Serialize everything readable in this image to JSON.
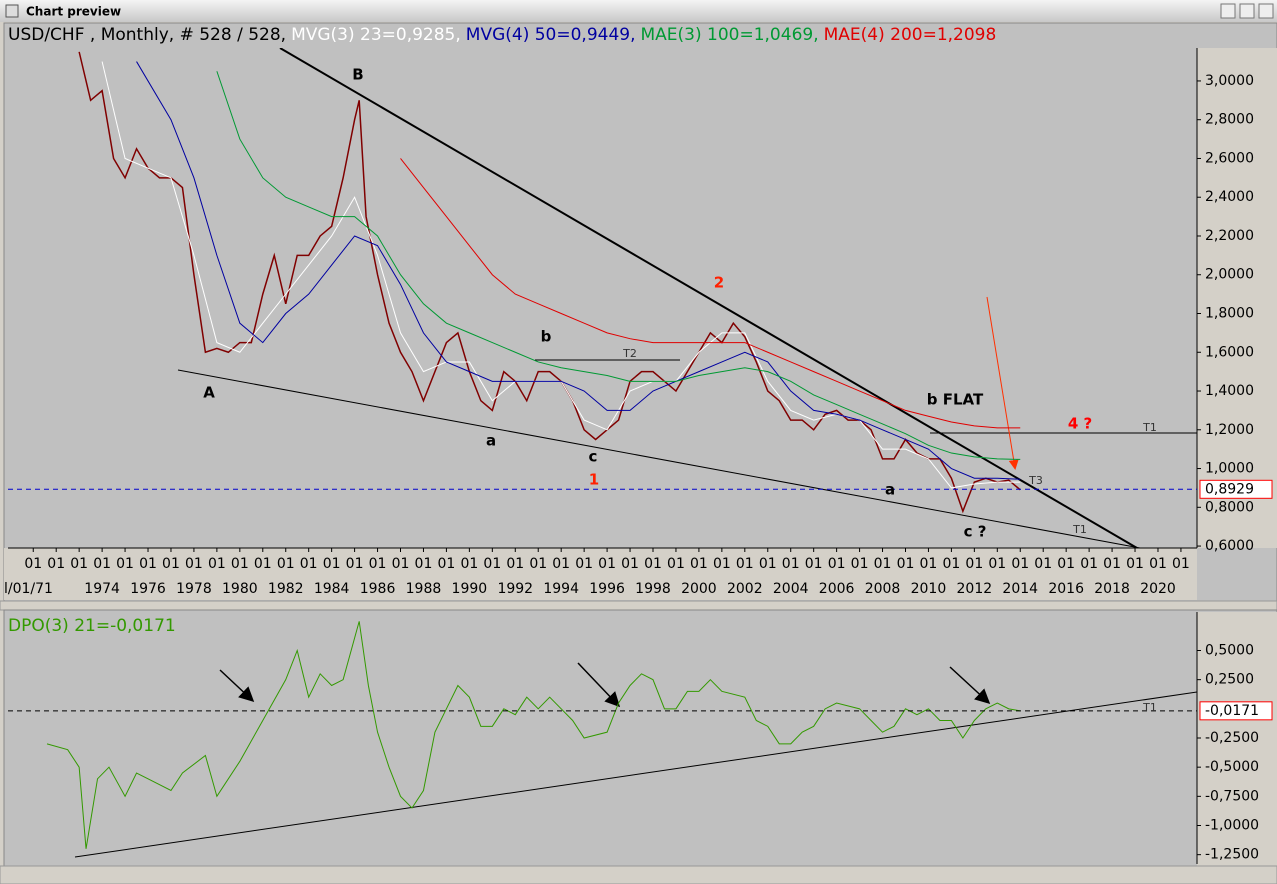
{
  "window_title": "Chart preview",
  "chart_data": [
    {
      "type": "line",
      "title": "USD/CHF , Monthly, # 528 / 528,",
      "xlim": [
        1969.9,
        2021.7
      ],
      "ylim": [
        0.59,
        3.17
      ],
      "xticks": [
        {
          "value": 1971,
          "label": "l/01/71"
        },
        1974,
        1976,
        1978,
        1980,
        1982,
        1984,
        1986,
        1988,
        1990,
        1992,
        1994,
        1996,
        1998,
        2000,
        2002,
        2004,
        2006,
        2008,
        2010,
        2012,
        2014,
        2016,
        2018,
        2020
      ],
      "xminorticks": [
        {
          "value": 1971,
          "label": "01"
        },
        {
          "value": 1972,
          "label": "01"
        },
        {
          "value": 1973,
          "label": "01"
        },
        {
          "value": 1974,
          "label": "01"
        },
        {
          "value": 1975,
          "label": "01"
        },
        {
          "value": 1976,
          "label": "01"
        },
        {
          "value": 1977,
          "label": "01"
        },
        {
          "value": 1978,
          "label": "01"
        },
        {
          "value": 1979,
          "label": "01"
        },
        {
          "value": 1980,
          "label": "01"
        },
        {
          "value": 1981,
          "label": "01"
        },
        {
          "value": 1982,
          "label": "01"
        },
        {
          "value": 1983,
          "label": "01"
        },
        {
          "value": 1984,
          "label": "01"
        },
        {
          "value": 1985,
          "label": "01"
        },
        {
          "value": 1986,
          "label": "01"
        },
        {
          "value": 1987,
          "label": "01"
        },
        {
          "value": 1988,
          "label": "01"
        },
        {
          "value": 1989,
          "label": "01"
        },
        {
          "value": 1990,
          "label": "01"
        },
        {
          "value": 1991,
          "label": "01"
        },
        {
          "value": 1992,
          "label": "01"
        },
        {
          "value": 1993,
          "label": "01"
        },
        {
          "value": 1994,
          "label": "01"
        },
        {
          "value": 1995,
          "label": "01"
        },
        {
          "value": 1996,
          "label": "01"
        },
        {
          "value": 1997,
          "label": "01"
        },
        {
          "value": 1998,
          "label": "01"
        },
        {
          "value": 1999,
          "label": "01"
        },
        {
          "value": 2000,
          "label": "01"
        },
        {
          "value": 2001,
          "label": "01"
        },
        {
          "value": 2002,
          "label": "01"
        },
        {
          "value": 2003,
          "label": "01"
        },
        {
          "value": 2004,
          "label": "01"
        },
        {
          "value": 2005,
          "label": "01"
        },
        {
          "value": 2006,
          "label": "01"
        },
        {
          "value": 2007,
          "label": "01"
        },
        {
          "value": 2008,
          "label": "01"
        },
        {
          "value": 2009,
          "label": "01"
        },
        {
          "value": 2010,
          "label": "01"
        },
        {
          "value": 2011,
          "label": "01"
        },
        {
          "value": 2012,
          "label": "01"
        },
        {
          "value": 2013,
          "label": "01"
        },
        {
          "value": 2014,
          "label": "01"
        },
        {
          "value": 2015,
          "label": "01"
        },
        {
          "value": 2016,
          "label": "01"
        },
        {
          "value": 2017,
          "label": "01"
        },
        {
          "value": 2018,
          "label": "01"
        },
        {
          "value": 2019,
          "label": "01"
        },
        {
          "value": 2020,
          "label": "01"
        },
        {
          "value": 2021,
          "label": "01"
        }
      ],
      "yticks": [
        {
          "value": 0.6,
          "label": "0,6000"
        },
        {
          "value": 0.8,
          "label": "0,8000"
        },
        {
          "value": 1.0,
          "label": "1,0000"
        },
        {
          "value": 1.2,
          "label": "1,2000"
        },
        {
          "value": 1.4,
          "label": "1,4000"
        },
        {
          "value": 1.6,
          "label": "1,6000"
        },
        {
          "value": 1.8,
          "label": "1,8000"
        },
        {
          "value": 2.0,
          "label": "2,0000"
        },
        {
          "value": 2.2,
          "label": "2,2000"
        },
        {
          "value": 2.4,
          "label": "2,4000"
        },
        {
          "value": 2.6,
          "label": "2,6000"
        },
        {
          "value": 2.8,
          "label": "2,8000"
        },
        {
          "value": 3.0,
          "label": "3,0000"
        }
      ],
      "price": {
        "color": "#800000",
        "x": [
          1973.0,
          1973.5,
          1974.0,
          1974.5,
          1975.0,
          1975.5,
          1976.0,
          1976.5,
          1977.0,
          1977.5,
          1978.0,
          1978.5,
          1979.0,
          1979.5,
          1980.0,
          1980.5,
          1981.0,
          1981.5,
          1982.0,
          1982.5,
          1983.0,
          1983.5,
          1984.0,
          1984.5,
          1985.0,
          1985.2,
          1985.5,
          1986.0,
          1986.5,
          1987.0,
          1987.5,
          1988.0,
          1988.5,
          1989.0,
          1989.5,
          1990.0,
          1990.5,
          1991.0,
          1991.5,
          1992.0,
          1992.5,
          1993.0,
          1993.5,
          1994.0,
          1994.5,
          1995.0,
          1995.5,
          1996.0,
          1996.5,
          1997.0,
          1997.5,
          1998.0,
          1998.5,
          1999.0,
          1999.5,
          2000.0,
          2000.5,
          2001.0,
          2001.5,
          2002.0,
          2002.5,
          2003.0,
          2003.5,
          2004.0,
          2004.5,
          2005.0,
          2005.5,
          2006.0,
          2006.5,
          2007.0,
          2007.5,
          2008.0,
          2008.5,
          2009.0,
          2009.5,
          2010.0,
          2010.5,
          2011.0,
          2011.5,
          2012.0,
          2012.5,
          2013.0,
          2013.5,
          2014.0
        ],
        "values": [
          3.15,
          2.9,
          2.95,
          2.6,
          2.5,
          2.65,
          2.55,
          2.5,
          2.5,
          2.45,
          2.0,
          1.6,
          1.62,
          1.6,
          1.65,
          1.65,
          1.9,
          2.1,
          1.85,
          2.1,
          2.1,
          2.2,
          2.25,
          2.5,
          2.8,
          2.9,
          2.3,
          2.0,
          1.75,
          1.6,
          1.5,
          1.35,
          1.5,
          1.65,
          1.7,
          1.5,
          1.35,
          1.3,
          1.5,
          1.45,
          1.35,
          1.5,
          1.5,
          1.45,
          1.35,
          1.2,
          1.15,
          1.2,
          1.25,
          1.45,
          1.5,
          1.5,
          1.45,
          1.4,
          1.5,
          1.6,
          1.7,
          1.65,
          1.75,
          1.68,
          1.55,
          1.4,
          1.35,
          1.25,
          1.25,
          1.2,
          1.28,
          1.3,
          1.25,
          1.25,
          1.2,
          1.05,
          1.05,
          1.15,
          1.08,
          1.05,
          1.05,
          0.95,
          0.78,
          0.93,
          0.95,
          0.93,
          0.94,
          0.89
        ]
      },
      "series": [
        {
          "name": "MVG(3) 23=0,9285,",
          "color": "#ffffff",
          "x": [
            1974,
            1975,
            1976,
            1977,
            1978,
            1979,
            1980,
            1981,
            1982,
            1983,
            1984,
            1985,
            1986,
            1987,
            1988,
            1989,
            1990,
            1991,
            1992,
            1993,
            1994,
            1995,
            1996,
            1997,
            1998,
            1999,
            2000,
            2001,
            2002,
            2003,
            2004,
            2005,
            2006,
            2007,
            2008,
            2009,
            2010,
            2011,
            2012,
            2013,
            2014
          ],
          "values": [
            3.1,
            2.6,
            2.55,
            2.5,
            2.1,
            1.65,
            1.6,
            1.75,
            1.9,
            2.05,
            2.2,
            2.4,
            2.1,
            1.7,
            1.5,
            1.55,
            1.55,
            1.35,
            1.45,
            1.45,
            1.45,
            1.25,
            1.2,
            1.4,
            1.45,
            1.45,
            1.6,
            1.7,
            1.7,
            1.45,
            1.3,
            1.25,
            1.28,
            1.25,
            1.1,
            1.1,
            1.05,
            0.9,
            0.92,
            0.93,
            0.93
          ]
        },
        {
          "name": "MVG(4) 50=0,9449,",
          "color": "#0000a0",
          "x": [
            1975.5,
            1977,
            1978,
            1979,
            1980,
            1981,
            1982,
            1983,
            1984,
            1985,
            1986,
            1987,
            1988,
            1989,
            1990,
            1991,
            1992,
            1993,
            1994,
            1995,
            1996,
            1997,
            1998,
            1999,
            2000,
            2001,
            2002,
            2003,
            2004,
            2005,
            2006,
            2007,
            2008,
            2009,
            2010,
            2011,
            2012,
            2013,
            2014
          ],
          "values": [
            3.1,
            2.8,
            2.5,
            2.1,
            1.75,
            1.65,
            1.8,
            1.9,
            2.05,
            2.2,
            2.15,
            1.95,
            1.7,
            1.55,
            1.5,
            1.45,
            1.45,
            1.45,
            1.45,
            1.4,
            1.3,
            1.3,
            1.4,
            1.45,
            1.5,
            1.55,
            1.6,
            1.55,
            1.4,
            1.3,
            1.28,
            1.25,
            1.2,
            1.15,
            1.1,
            1.0,
            0.95,
            0.95,
            0.945
          ]
        },
        {
          "name": "MAE(3) 100=1,0469,",
          "color": "#009933",
          "x": [
            1979,
            1980,
            1981,
            1982,
            1983,
            1984,
            1985,
            1986,
            1987,
            1988,
            1989,
            1990,
            1991,
            1992,
            1993,
            1994,
            1995,
            1996,
            1997,
            1998,
            1999,
            2000,
            2001,
            2002,
            2003,
            2004,
            2005,
            2006,
            2007,
            2008,
            2009,
            2010,
            2011,
            2012,
            2013,
            2014
          ],
          "values": [
            3.05,
            2.7,
            2.5,
            2.4,
            2.35,
            2.3,
            2.3,
            2.2,
            2.0,
            1.85,
            1.75,
            1.7,
            1.65,
            1.6,
            1.55,
            1.52,
            1.5,
            1.48,
            1.45,
            1.45,
            1.45,
            1.48,
            1.5,
            1.52,
            1.5,
            1.45,
            1.38,
            1.33,
            1.28,
            1.23,
            1.18,
            1.12,
            1.08,
            1.06,
            1.05,
            1.047
          ]
        },
        {
          "name": "MAE(4) 200=1,2098",
          "color": "#e00000",
          "x": [
            1987,
            1988,
            1989,
            1990,
            1991,
            1992,
            1993,
            1994,
            1995,
            1996,
            1997,
            1998,
            1999,
            2000,
            2001,
            2002,
            2003,
            2004,
            2005,
            2006,
            2007,
            2008,
            2009,
            2010,
            2011,
            2012,
            2013,
            2014
          ],
          "values": [
            2.6,
            2.45,
            2.3,
            2.15,
            2.0,
            1.9,
            1.85,
            1.8,
            1.75,
            1.7,
            1.67,
            1.65,
            1.65,
            1.65,
            1.65,
            1.65,
            1.6,
            1.55,
            1.5,
            1.45,
            1.4,
            1.35,
            1.3,
            1.27,
            1.24,
            1.22,
            1.21,
            1.21
          ]
        }
      ],
      "current": 0.8929,
      "current_label": "0,8929",
      "annotations": [
        {
          "text": "B",
          "color": "#000000"
        },
        {
          "text": "A",
          "color": "#000000"
        },
        {
          "text": "a",
          "color": "#000000"
        },
        {
          "text": "c",
          "color": "#000000"
        },
        {
          "text": "b",
          "color": "#000000"
        },
        {
          "text": "T2",
          "color": "#333333"
        },
        {
          "text": "2",
          "color": "#ff2000"
        },
        {
          "text": "1",
          "color": "#ff2000"
        },
        {
          "text": "a",
          "color": "#000000"
        },
        {
          "text": "b FLAT",
          "color": "#000000"
        },
        {
          "text": "4 ?",
          "color": "#ff0000"
        },
        {
          "text": "T1",
          "color": "#333333"
        },
        {
          "text": "c ?",
          "color": "#000000"
        },
        {
          "text": "T3",
          "color": "#333333"
        },
        {
          "text": "T1",
          "color": "#333333"
        }
      ]
    },
    {
      "type": "line",
      "title": "DPO(3) 21=-0,0171",
      "color": "#339900",
      "xlim": [
        1969.9,
        2021.7
      ],
      "ylim": [
        -1.33,
        0.83
      ],
      "yticks": [
        {
          "value": 0.5,
          "label": "0,5000"
        },
        {
          "value": 0.25,
          "label": "0,2500"
        },
        {
          "value": -0.25,
          "label": "-0,2500"
        },
        {
          "value": -0.5,
          "label": "-0,5000"
        },
        {
          "value": -0.75,
          "label": "-0,7500"
        },
        {
          "value": -1.0,
          "label": "-1,0000"
        },
        {
          "value": -1.25,
          "label": "-1,2500"
        }
      ],
      "x": [
        1971.6,
        1972.5,
        1973.0,
        1973.3,
        1973.8,
        1974.3,
        1975.0,
        1975.5,
        1976.0,
        1977.0,
        1977.5,
        1978.5,
        1979.0,
        1980.0,
        1981.0,
        1982.0,
        1982.5,
        1983.0,
        1983.5,
        1984.0,
        1984.5,
        1985.2,
        1985.6,
        1986.0,
        1986.5,
        1987.0,
        1987.5,
        1988.0,
        1988.5,
        1989.0,
        1989.5,
        1990.0,
        1990.5,
        1991.0,
        1991.5,
        1992.0,
        1992.5,
        1993.0,
        1993.5,
        1994.0,
        1994.5,
        1995.0,
        1996.0,
        1996.5,
        1997.0,
        1997.5,
        1998.0,
        1998.5,
        1999.0,
        1999.5,
        2000.0,
        2000.5,
        2001.0,
        2002.0,
        2002.5,
        2003.0,
        2003.5,
        2004.0,
        2004.5,
        2005.0,
        2005.5,
        2006.0,
        2007.0,
        2007.5,
        2008.0,
        2008.5,
        2009.0,
        2009.5,
        2010.0,
        2010.5,
        2011.0,
        2011.5,
        2012.0,
        2012.5,
        2013.0,
        2013.5,
        2014.0
      ],
      "values": [
        -0.3,
        -0.35,
        -0.5,
        -1.2,
        -0.6,
        -0.5,
        -0.75,
        -0.55,
        -0.6,
        -0.7,
        -0.55,
        -0.4,
        -0.75,
        -0.45,
        -0.1,
        0.25,
        0.5,
        0.1,
        0.3,
        0.2,
        0.25,
        0.75,
        0.2,
        -0.2,
        -0.5,
        -0.75,
        -0.85,
        -0.7,
        -0.2,
        0.0,
        0.2,
        0.1,
        -0.15,
        -0.15,
        0.0,
        -0.05,
        0.1,
        0.0,
        0.1,
        0.0,
        -0.1,
        -0.25,
        -0.2,
        0.05,
        0.2,
        0.3,
        0.25,
        0.0,
        0.0,
        0.15,
        0.15,
        0.25,
        0.15,
        0.1,
        -0.1,
        -0.15,
        -0.3,
        -0.3,
        -0.2,
        -0.15,
        0.0,
        0.05,
        0.0,
        -0.1,
        -0.2,
        -0.15,
        0.0,
        -0.05,
        0.0,
        -0.1,
        -0.1,
        -0.25,
        -0.1,
        0.0,
        0.05,
        0.0,
        -0.0171
      ],
      "current": -0.0171,
      "current_label": "-0,0171",
      "annotations": [
        {
          "text": "T1",
          "color": "#333333"
        }
      ]
    }
  ]
}
